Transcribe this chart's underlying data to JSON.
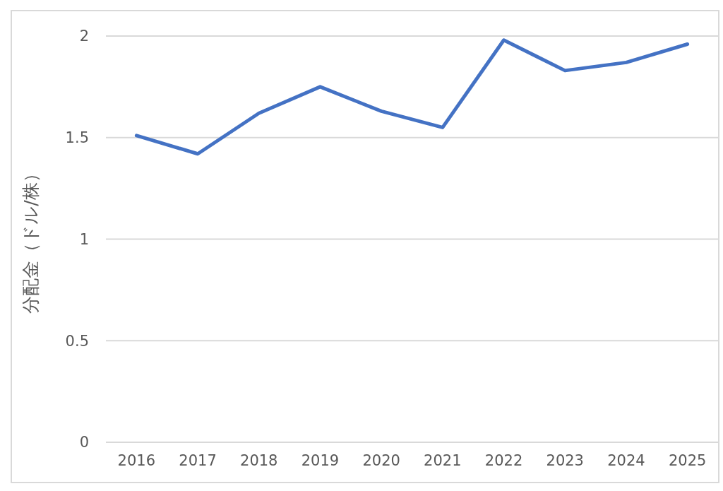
{
  "chart_data": {
    "type": "line",
    "ylabel": "分配金（ドル/株）",
    "categories": [
      "2016",
      "2017",
      "2018",
      "2019",
      "2020",
      "2021",
      "2022",
      "2023",
      "2024",
      "2025"
    ],
    "series": [
      {
        "color": "#4472c4",
        "values": [
          1.51,
          1.42,
          1.62,
          1.75,
          1.63,
          1.55,
          1.98,
          1.83,
          1.87,
          1.96
        ]
      }
    ],
    "ylim": [
      0,
      2
    ],
    "yticks": [
      0,
      0.5,
      1,
      1.5,
      2
    ],
    "grid": "y",
    "marker": "none"
  }
}
